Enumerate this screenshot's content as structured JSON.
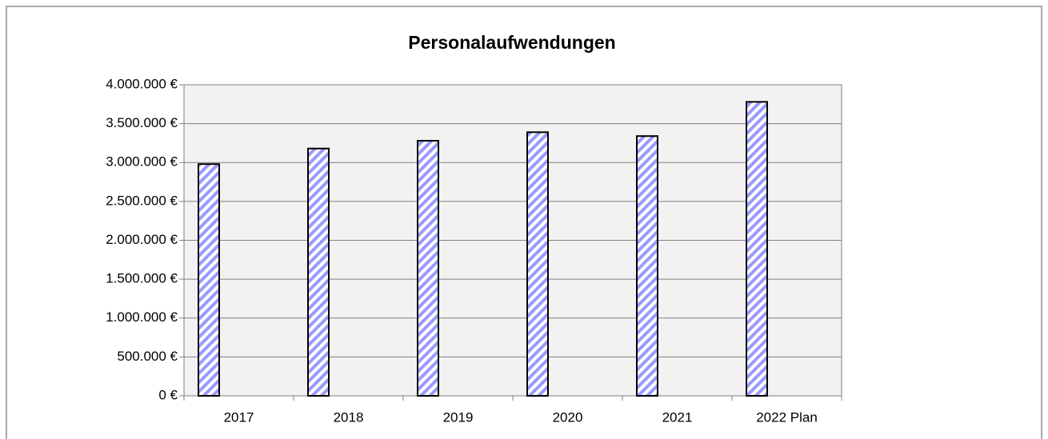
{
  "chart_data": {
    "type": "bar",
    "title": "Personalaufwendungen",
    "categories": [
      "2017",
      "2018",
      "2019",
      "2020",
      "2021",
      "2022 Plan"
    ],
    "values": [
      2980000,
      3180000,
      3280000,
      3390000,
      3340000,
      3780000
    ],
    "color": "#9999ff",
    "ylim": [
      0,
      4000000
    ],
    "yticks": [
      {
        "value": 0,
        "label": "0 €"
      },
      {
        "value": 500000,
        "label": "500.000 €"
      },
      {
        "value": 1000000,
        "label": "1.000.000 €"
      },
      {
        "value": 1500000,
        "label": "1.500.000 €"
      },
      {
        "value": 2000000,
        "label": "2.000.000 €"
      },
      {
        "value": 2500000,
        "label": "2.500.000 €"
      },
      {
        "value": 3000000,
        "label": "3.000.000 €"
      },
      {
        "value": 3500000,
        "label": "3.500.000 €"
      },
      {
        "value": 4000000,
        "label": "4.000.000 €"
      }
    ],
    "grid": true
  }
}
